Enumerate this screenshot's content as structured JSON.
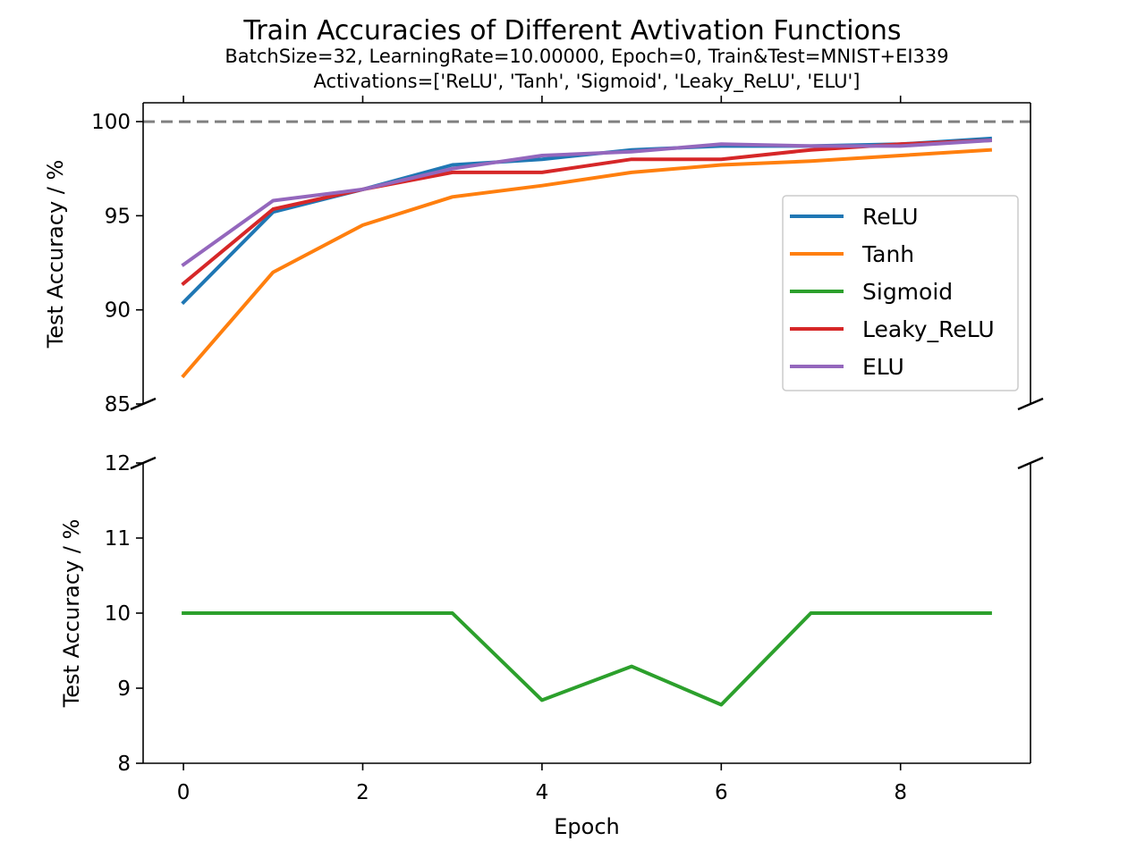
{
  "chart_data": {
    "type": "line",
    "title": "Train Accuracies of Different Avtivation Functions",
    "subtitle_lines": [
      "BatchSize=32, LearningRate=10.00000, Epoch=0, Train&Test=MNIST+EI339",
      "Activations=['ReLU', 'Tanh', 'Sigmoid', 'Leaky_ReLU', 'ELU']"
    ],
    "xlabel": "Epoch",
    "x": [
      0,
      1,
      2,
      3,
      4,
      5,
      6,
      7,
      8,
      9
    ],
    "x_ticks": [
      0,
      2,
      4,
      6,
      8
    ],
    "x_tick_labels": [
      "0",
      "2",
      "4",
      "6",
      "8"
    ],
    "xlim": [
      -0.45,
      9.45
    ],
    "broken_y_axis": true,
    "reference_line": {
      "y": 100,
      "style": "dashed",
      "color": "#808080"
    },
    "legend_position": "center-right of upper panel",
    "grid": false,
    "panels": [
      {
        "id": "upper",
        "ylabel": "Test Accuracy / %",
        "ylim": [
          85,
          101
        ],
        "y_ticks": [
          85,
          90,
          95,
          100
        ],
        "y_tick_labels": [
          "85",
          "90",
          "95",
          "100"
        ]
      },
      {
        "id": "lower",
        "ylabel": "Test Accuracy / %",
        "ylim": [
          8,
          12
        ],
        "y_ticks": [
          8,
          9,
          10,
          11,
          12
        ],
        "y_tick_labels": [
          "8",
          "9",
          "10",
          "11",
          "12"
        ]
      }
    ],
    "series": [
      {
        "name": "ReLU",
        "color": "#1f77b4",
        "panel": "upper",
        "values": [
          90.4,
          95.2,
          96.4,
          97.7,
          98.0,
          98.5,
          98.7,
          98.7,
          98.8,
          99.1
        ]
      },
      {
        "name": "Tanh",
        "color": "#ff7f0e",
        "panel": "upper",
        "values": [
          86.5,
          92.0,
          94.5,
          96.0,
          96.6,
          97.3,
          97.7,
          97.9,
          98.2,
          98.5
        ]
      },
      {
        "name": "Sigmoid",
        "color": "#2ca02c",
        "panel": "lower",
        "values": [
          10.0,
          10.0,
          10.0,
          10.0,
          8.84,
          9.29,
          8.78,
          10.0,
          10.0,
          10.0
        ]
      },
      {
        "name": "Leaky_ReLU",
        "color": "#d62728",
        "panel": "upper",
        "values": [
          91.4,
          95.35,
          96.4,
          97.3,
          97.3,
          98.0,
          98.0,
          98.5,
          98.8,
          99.0
        ]
      },
      {
        "name": "ELU",
        "color": "#9467bd",
        "panel": "upper",
        "values": [
          92.4,
          95.8,
          96.4,
          97.5,
          98.2,
          98.4,
          98.8,
          98.7,
          98.7,
          99.0
        ]
      }
    ]
  }
}
